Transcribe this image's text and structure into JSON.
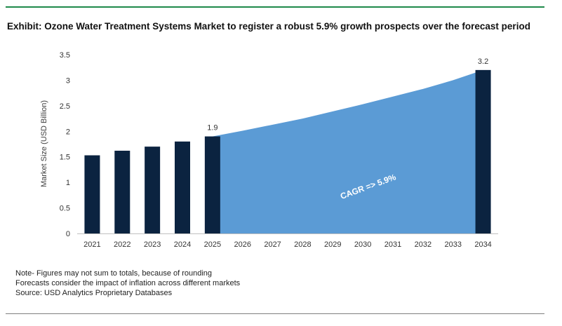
{
  "title": "Exhibit: Ozone Water Treatment Systems Market to register a robust 5.9% growth prospects over the forecast period",
  "notes": [
    "Note- Figures may not sum to totals, because of rounding",
    "Forecasts consider the impact of inflation across different markets",
    "Source: USD Analytics Proprietary Databases"
  ],
  "colors": {
    "bar": "#0b2340",
    "area": "#5b9bd5",
    "rule": "#1e8a4a"
  },
  "chart_data": {
    "type": "bar",
    "categories": [
      "2021",
      "2022",
      "2023",
      "2024",
      "2025",
      "2026",
      "2027",
      "2028",
      "2029",
      "2030",
      "2031",
      "2032",
      "2033",
      "2034"
    ],
    "bar_values": [
      1.53,
      1.62,
      1.7,
      1.8,
      1.9,
      null,
      null,
      null,
      null,
      null,
      null,
      null,
      null,
      3.2
    ],
    "area_values": [
      null,
      null,
      null,
      null,
      1.9,
      2.01,
      2.13,
      2.25,
      2.39,
      2.53,
      2.68,
      2.83,
      3.0,
      3.2
    ],
    "data_labels": [
      {
        "category": "2025",
        "text": "1.9"
      },
      {
        "category": "2034",
        "text": "3.2"
      }
    ],
    "annotation": "CAGR => 5.9%",
    "ylabel": "Market Size (USD Billion)",
    "xlabel": "",
    "ylim": [
      0,
      3.5
    ],
    "yticks": [
      "0",
      "0.5",
      "1",
      "1.5",
      "2",
      "2.5",
      "3",
      "3.5"
    ],
    "grid": false,
    "legend": "none"
  }
}
